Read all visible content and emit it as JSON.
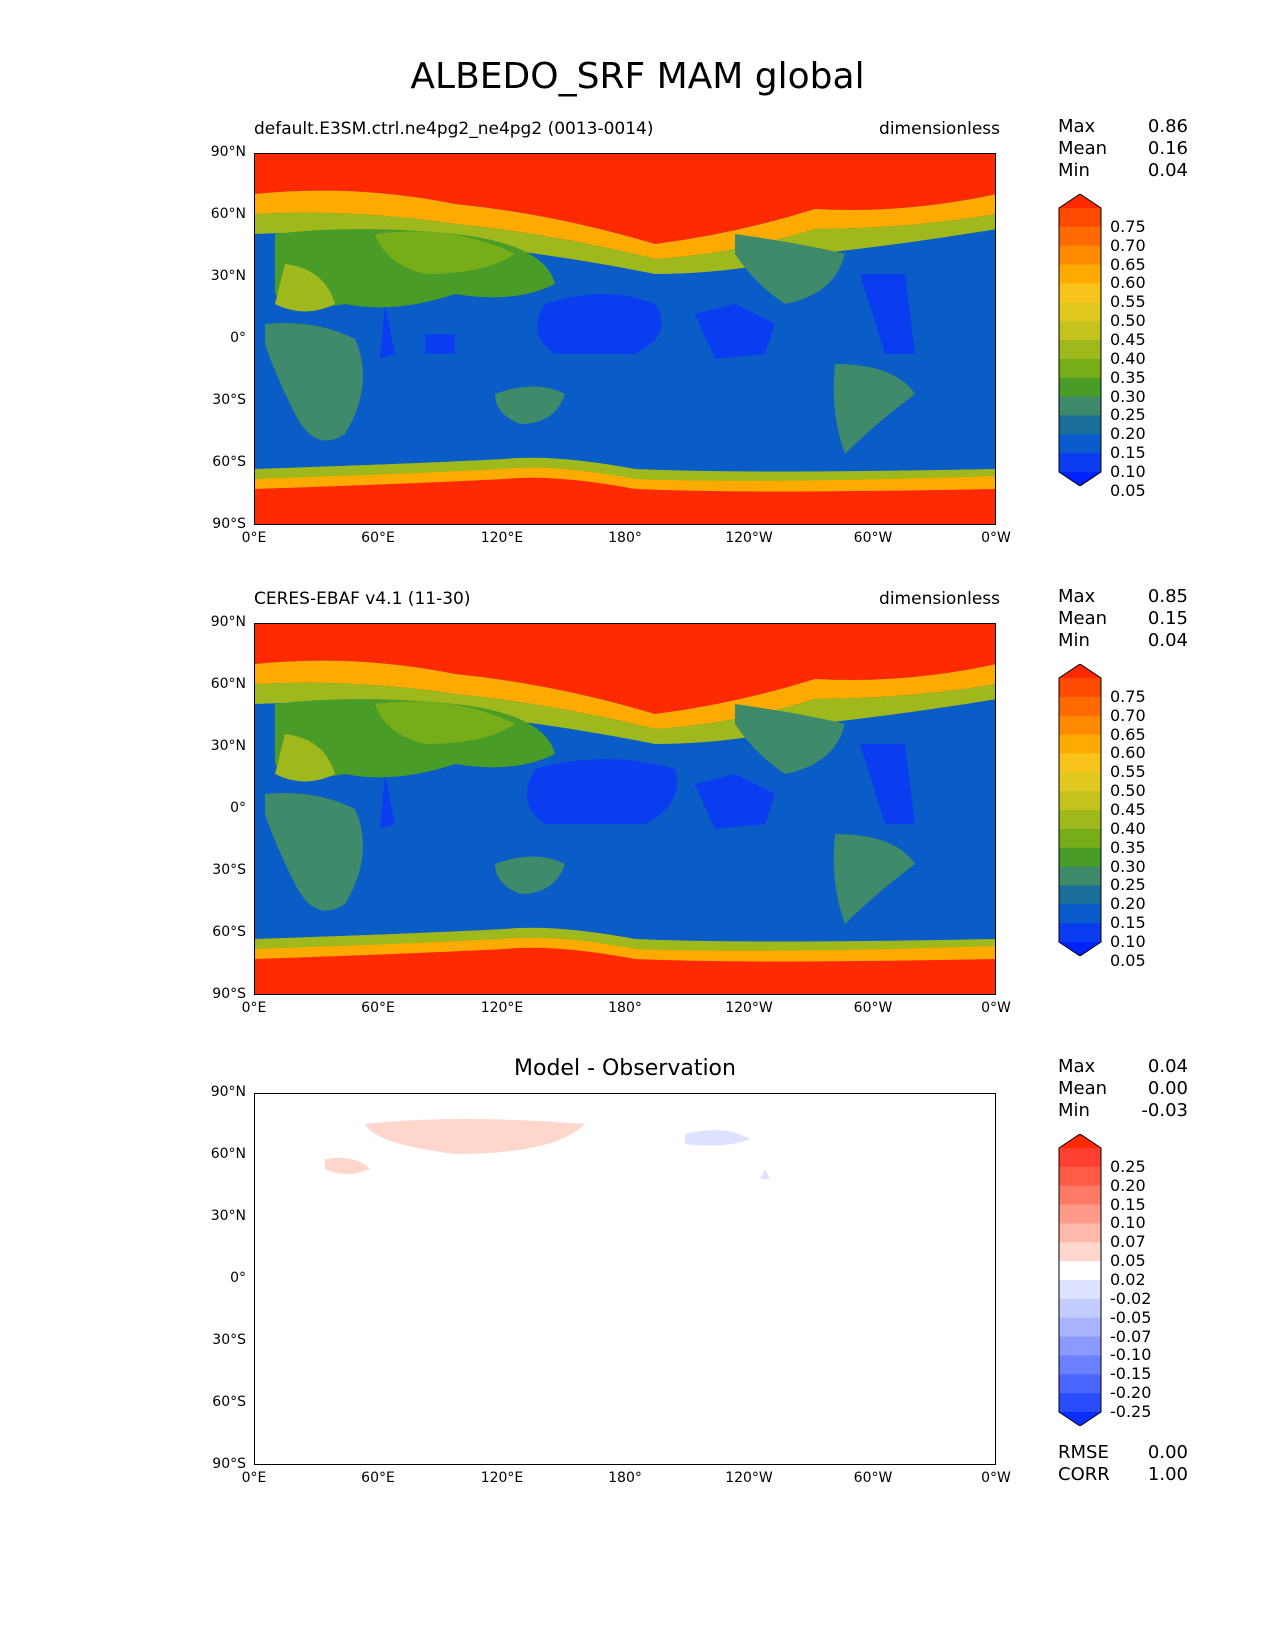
{
  "title": "ALBEDO_SRF MAM global",
  "lat_ticks": [
    "90°N",
    "60°N",
    "30°N",
    "0°",
    "30°S",
    "60°S",
    "90°S"
  ],
  "lon_ticks": [
    "0°E",
    "60°E",
    "120°E",
    "180°",
    "120°W",
    "60°W",
    "0°W"
  ],
  "panels": [
    {
      "left_title": "default.E3SM.ctrl.ne4pg2_ne4pg2 (0013-0014)",
      "right_title": "dimensionless",
      "stats": {
        "max_label": "Max",
        "max": "0.86",
        "mean_label": "Mean",
        "mean": "0.16",
        "min_label": "Min",
        "min": "0.04"
      },
      "colorbar": "albedo"
    },
    {
      "left_title": "CERES-EBAF v4.1 (11-30)",
      "right_title": "dimensionless",
      "stats": {
        "max_label": "Max",
        "max": "0.85",
        "mean_label": "Mean",
        "mean": "0.15",
        "min_label": "Min",
        "min": "0.04"
      },
      "colorbar": "albedo"
    },
    {
      "center_title": "Model - Observation",
      "stats": {
        "max_label": "Max",
        "max": "0.04",
        "mean_label": "Mean",
        "mean": "0.00",
        "min_label": "Min",
        "min": "-0.03"
      },
      "colorbar": "diff",
      "footer": {
        "rmse_label": "RMSE",
        "rmse": "0.00",
        "corr_label": "CORR",
        "corr": "1.00"
      }
    }
  ],
  "colorbars": {
    "albedo": {
      "levels": [
        "0.75",
        "0.70",
        "0.65",
        "0.60",
        "0.55",
        "0.50",
        "0.45",
        "0.40",
        "0.35",
        "0.30",
        "0.25",
        "0.20",
        "0.15",
        "0.10",
        "0.05"
      ],
      "colors": [
        "#ff2a00",
        "#ff4a00",
        "#ff6a00",
        "#ff8a00",
        "#ffaa00",
        "#f8c31a",
        "#e0c81e",
        "#c4c21c",
        "#9fb81c",
        "#78ad1a",
        "#4a9c28",
        "#3e8a6a",
        "#1a6e9a",
        "#0a5ccc",
        "#0a3cf0",
        "#0022ff"
      ]
    },
    "diff": {
      "levels": [
        "0.25",
        "0.20",
        "0.15",
        "0.10",
        "0.07",
        "0.05",
        "0.02",
        "-0.02",
        "-0.05",
        "-0.07",
        "-0.10",
        "-0.15",
        "-0.20",
        "-0.25"
      ],
      "colors": [
        "#ff2a00",
        "#ff4030",
        "#ff5c48",
        "#ff7a66",
        "#ff9a8a",
        "#ffb8aa",
        "#ffd6cc",
        "#ffffff",
        "#dde3ff",
        "#c3ccff",
        "#a9b5ff",
        "#8a9aff",
        "#6a80ff",
        "#4a66ff",
        "#2a4cff",
        "#0a2eff"
      ]
    }
  }
}
